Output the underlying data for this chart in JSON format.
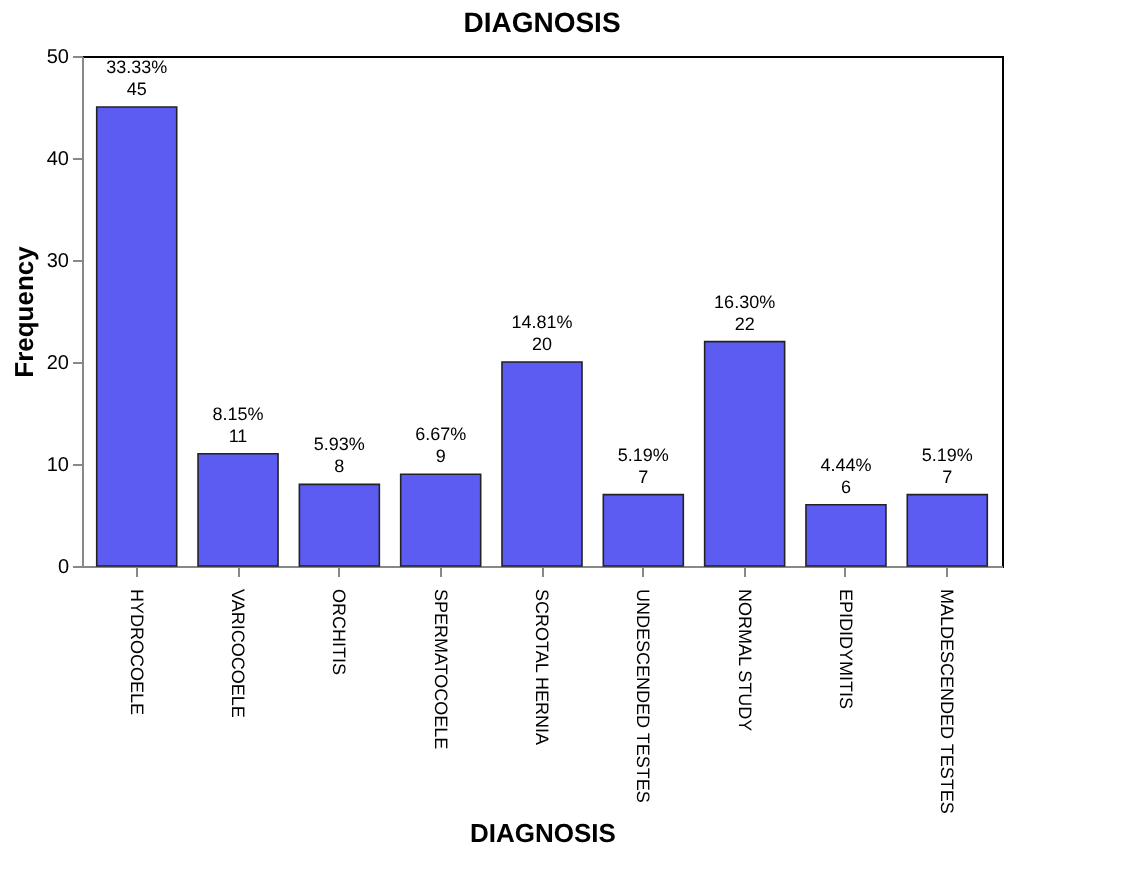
{
  "chart_data": {
    "type": "bar",
    "title": "DIAGNOSIS",
    "xlabel": "DIAGNOSIS",
    "ylabel": "Frequency",
    "categories": [
      "HYDROCOELE",
      "VARICOCOELE",
      "ORCHITIS",
      "SPERMATOCOELE",
      "SCROTAL HERNIA",
      "UNDESCENDED TESTES",
      "NORMAL STUDY",
      "EPIDIDYMITIS",
      "MALDESCENDED TESTES"
    ],
    "values": [
      45,
      11,
      8,
      9,
      20,
      7,
      22,
      6,
      7
    ],
    "value_labels": [
      "33.33%\n45",
      "8.15%\n11",
      "5.93%\n8",
      "6.67%\n9",
      "14.81%\n20",
      "5.19%\n7",
      "16.30%\n22",
      "4.44%\n6",
      "5.19%\n7"
    ],
    "color": "#5c5cf2",
    "ylim": [
      0,
      50
    ],
    "yticks": [
      0,
      10,
      20,
      30,
      40,
      50
    ],
    "grid": false
  }
}
